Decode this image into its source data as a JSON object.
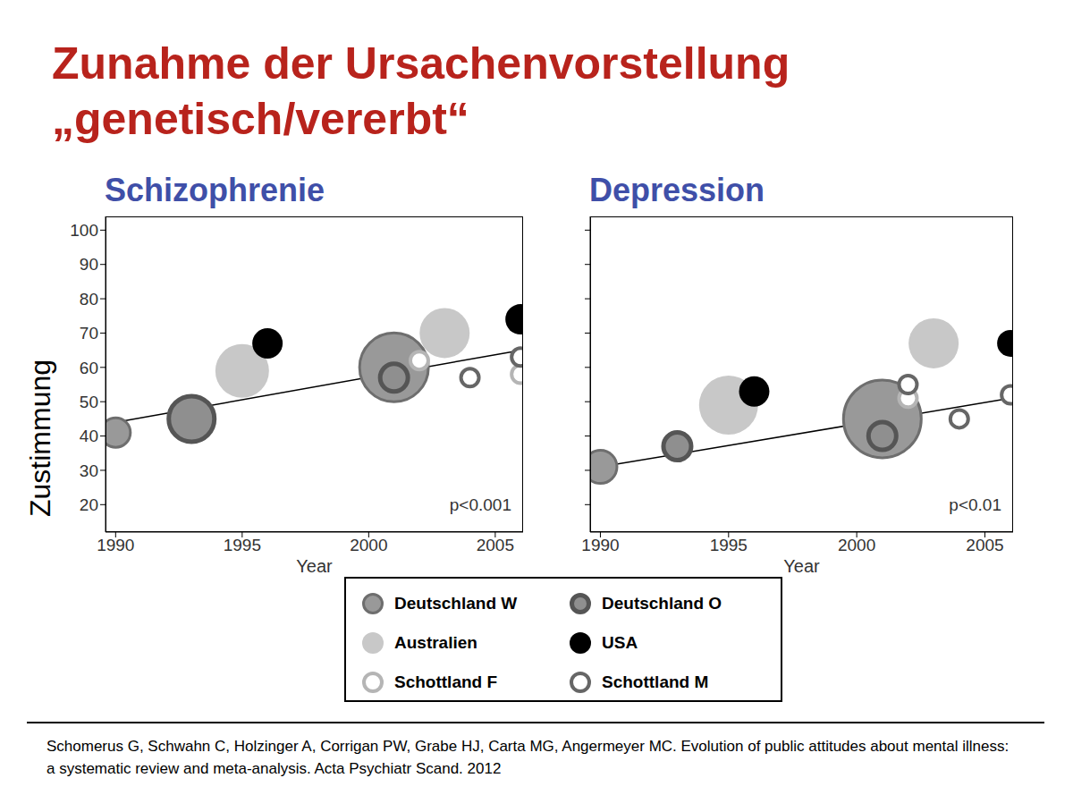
{
  "title": "Zunahme der Ursachenvorstellung „genetisch/vererbt“",
  "source": "Schomerus G, Schwahn C, Holzinger A, Corrigan PW, Grabe HJ, Carta MG, Angermeyer MC. Evolution of public attitudes about mental illness: a systematic review and meta-analysis. Acta Psychiatr Scand. 2012",
  "legend": "bottom",
  "chart_data": [
    {
      "type": "scatter",
      "title": "Schizophrenie",
      "x_label": "Year",
      "y_label": "Zustimmung",
      "xlim": [
        1989.6,
        2006.1
      ],
      "ylim": [
        12,
        104
      ],
      "xticks": [
        1990,
        1995,
        2000,
        2005
      ],
      "yticks": [
        20,
        30,
        40,
        50,
        60,
        70,
        80,
        90,
        100
      ],
      "annotation": "p<0.001",
      "trend": {
        "x": [
          1990,
          2006
        ],
        "values": [
          44,
          65
        ]
      },
      "series": [
        {
          "name": "Deutschland W",
          "color": "#999999",
          "marker": "circle_outlined",
          "x": [
            1990,
            2001
          ],
          "values": [
            41,
            60
          ],
          "sizes": [
            324,
            1600
          ]
        },
        {
          "name": "Deutschland O",
          "color": "#555555",
          "marker": "circle_thick_outline",
          "x": [
            1993,
            2001
          ],
          "values": [
            45,
            57
          ],
          "sizes": [
            784,
            324
          ]
        },
        {
          "name": "Australien",
          "color": "#c8c8c8",
          "marker": "circle",
          "x": [
            1995,
            2003
          ],
          "values": [
            59,
            70
          ],
          "sizes": [
            900,
            784
          ]
        },
        {
          "name": "USA",
          "color": "#000000",
          "marker": "circle",
          "x": [
            1996,
            2006
          ],
          "values": [
            67,
            74
          ],
          "sizes": [
            289,
            289
          ]
        },
        {
          "name": "Schottland F",
          "color": "#b5b5b5",
          "marker": "ring",
          "x": [
            2002,
            2006
          ],
          "values": [
            62,
            58
          ],
          "sizes": [
            144,
            144
          ]
        },
        {
          "name": "Schottland M",
          "color": "#666666",
          "marker": "ring",
          "x": [
            2004,
            2006
          ],
          "values": [
            57,
            63
          ],
          "sizes": [
            144,
            144
          ]
        }
      ]
    },
    {
      "type": "scatter",
      "title": "Depression",
      "x_label": "Year",
      "xlim": [
        1989.6,
        2006.1
      ],
      "ylim": [
        12,
        104
      ],
      "xticks": [
        1990,
        1995,
        2000,
        2005
      ],
      "yticks": [
        20,
        30,
        40,
        50,
        60,
        70,
        80,
        90,
        100
      ],
      "tick_labels": "x",
      "annotation": "p<0.01",
      "trend": {
        "x": [
          1990,
          2006
        ],
        "values": [
          31,
          51
        ]
      },
      "series": [
        {
          "name": "Deutschland W",
          "color": "#999999",
          "marker": "circle_outlined",
          "x": [
            1990,
            2001
          ],
          "values": [
            31,
            45
          ],
          "sizes": [
            400,
            2025
          ]
        },
        {
          "name": "Deutschland O",
          "color": "#555555",
          "marker": "circle_thick_outline",
          "x": [
            1993,
            2001
          ],
          "values": [
            37,
            40
          ],
          "sizes": [
            324,
            324
          ]
        },
        {
          "name": "Australien",
          "color": "#c8c8c8",
          "marker": "circle",
          "x": [
            1995,
            2003
          ],
          "values": [
            49,
            67
          ],
          "sizes": [
            1089,
            784
          ]
        },
        {
          "name": "USA",
          "color": "#000000",
          "marker": "circle",
          "x": [
            1996,
            2006
          ],
          "values": [
            53,
            67
          ],
          "sizes": [
            289,
            225
          ]
        },
        {
          "name": "Schottland F",
          "color": "#b5b5b5",
          "marker": "ring",
          "x": [
            2002
          ],
          "values": [
            51
          ],
          "sizes": [
            144
          ]
        },
        {
          "name": "Schottland M",
          "color": "#666666",
          "marker": "ring",
          "x": [
            2002,
            2004,
            2006
          ],
          "values": [
            55,
            45,
            52
          ],
          "sizes": [
            144,
            144,
            144
          ]
        }
      ]
    }
  ]
}
